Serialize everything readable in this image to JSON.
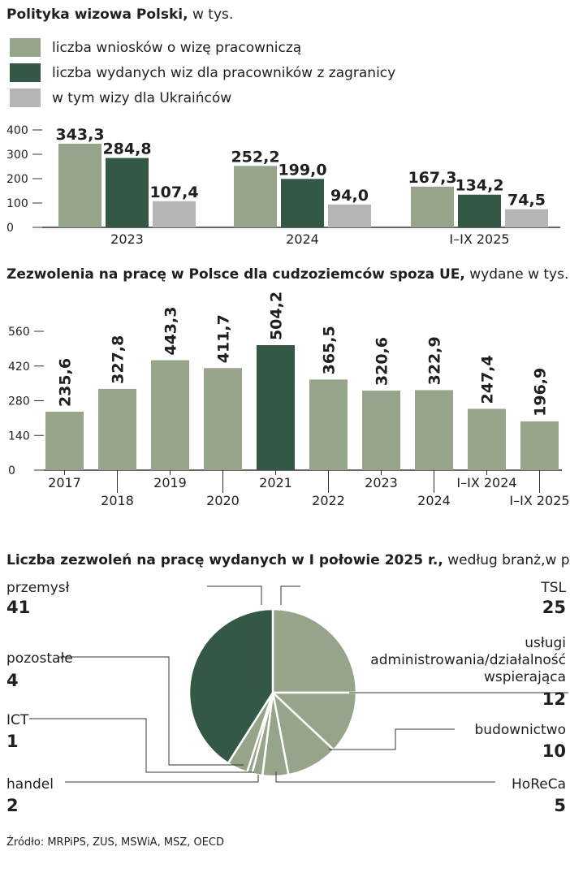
{
  "colors": {
    "light": "#96a48a",
    "dark": "#335845",
    "gray": "#b6b6b4",
    "axis": "#333333",
    "text": "#1f1f1f"
  },
  "chart_data": [
    {
      "type": "bar",
      "title_bold": "Polityka wizowa Polski,",
      "title_rest": " w tys.",
      "legend": [
        "liczba wniosków o wizę pracowniczą",
        "liczba wydanych wiz dla pracowników z zagranicy",
        "w tym wizy dla Ukraińców"
      ],
      "categories": [
        "2023",
        "2024",
        "I–IX 2025"
      ],
      "series": [
        {
          "name": "liczba wniosków o wizę pracowniczą",
          "values": [
            343.3,
            252.2,
            167.3
          ],
          "labels": [
            "343,3",
            "252,2",
            "167,3"
          ]
        },
        {
          "name": "liczba wydanych wiz dla pracowników z zagranicy",
          "values": [
            284.8,
            199.0,
            134.2
          ],
          "labels": [
            "284,8",
            "199,0",
            "134,2"
          ]
        },
        {
          "name": "w tym wizy dla Ukraińców",
          "values": [
            107.4,
            94.0,
            74.5
          ],
          "labels": [
            "107,4",
            "94,0",
            "74,5"
          ]
        }
      ],
      "yticks": [
        0,
        100,
        200,
        300,
        400
      ],
      "ylim": [
        0,
        400
      ]
    },
    {
      "type": "bar",
      "title_bold": "Zezwolenia na pracę w Polsce dla cudzoziemców spoza UE,",
      "title_rest": " wydane w tys.",
      "categories": [
        "2017",
        "2018",
        "2019",
        "2020",
        "2021",
        "2022",
        "2023",
        "2024",
        "I–IX 2024",
        "I–IX 2025"
      ],
      "values": [
        235.6,
        327.8,
        443.3,
        411.7,
        504.2,
        365.5,
        320.6,
        322.9,
        247.4,
        196.9
      ],
      "labels": [
        "235,6",
        "327,8",
        "443,3",
        "411,7",
        "504,2",
        "365,5",
        "320,6",
        "322,9",
        "247,4",
        "196,9"
      ],
      "highlight_index": 4,
      "yticks": [
        0,
        140,
        280,
        420,
        560
      ],
      "ylim": [
        0,
        560
      ]
    },
    {
      "type": "pie",
      "title_bold": "Liczba zezwoleń na pracę wydanych w I połowie 2025 r.,",
      "title_rest": " według branż,w proc.",
      "slices": [
        {
          "label": "TSL",
          "value": 25,
          "value_label": "25"
        },
        {
          "label": "usługi administrowania/działalność wspierająca",
          "lines": [
            "usługi",
            "administrowania/działalność",
            "wspierająca"
          ],
          "value": 12,
          "value_label": "12"
        },
        {
          "label": "budownictwo",
          "value": 10,
          "value_label": "10"
        },
        {
          "label": "HoReCa",
          "value": 5,
          "value_label": "5"
        },
        {
          "label": "handel",
          "value": 2,
          "value_label": "2"
        },
        {
          "label": "ICT",
          "value": 1,
          "value_label": "1"
        },
        {
          "label": "pozostałe",
          "value": 4,
          "value_label": "4"
        },
        {
          "label": "przemysł",
          "value": 41,
          "value_label": "41"
        }
      ]
    }
  ],
  "source": "Źródło: MRPiPS, ZUS, MSWiA, MSZ, OECD"
}
